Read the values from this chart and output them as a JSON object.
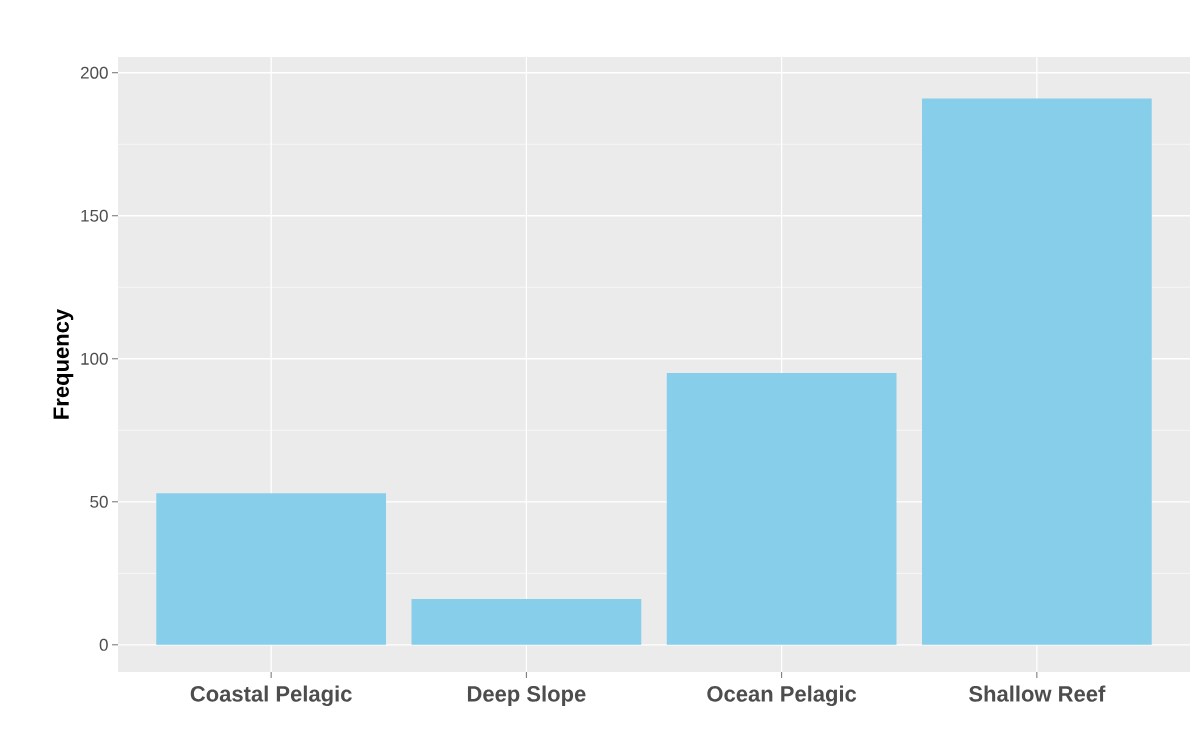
{
  "chart_data": {
    "type": "bar",
    "ylabel": "Frequency",
    "categories": [
      "Coastal Pelagic",
      "Deep Slope",
      "Ocean Pelagic",
      "Shallow Reef"
    ],
    "values": [
      53,
      16,
      95,
      191
    ],
    "color": "#87ceeb",
    "ylim": [
      -9.5,
      205.5
    ],
    "yticks": [
      0,
      50,
      100,
      150,
      200
    ],
    "grid": true
  }
}
